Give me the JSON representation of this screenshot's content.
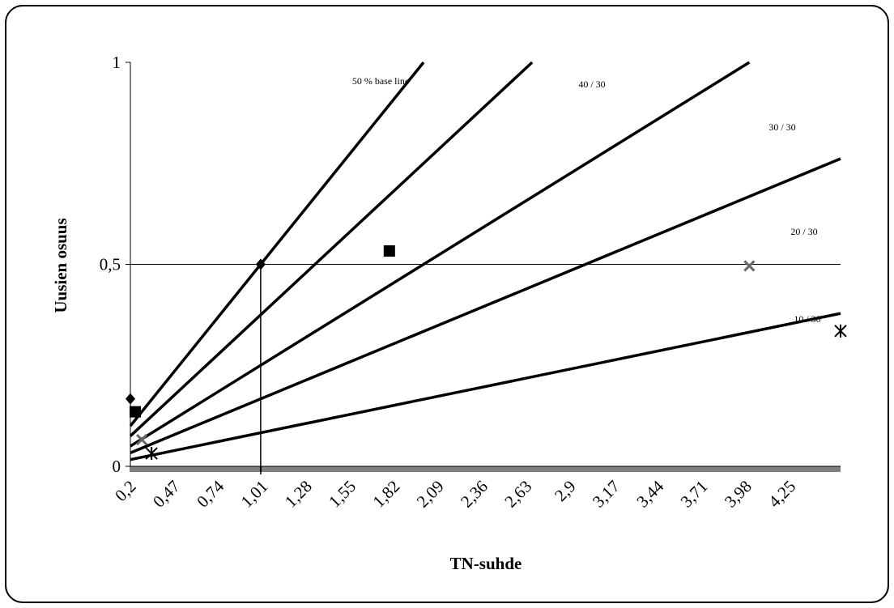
{
  "chart_data": {
    "type": "line",
    "xlabel": "TN-suhde",
    "ylabel": "Uusien osuus",
    "xlim": [
      0.2,
      4.56
    ],
    "ylim": [
      0,
      1
    ],
    "x_tick_labels": [
      "0,2",
      "0,47",
      "0,74",
      "1,01",
      "1,28",
      "1,55",
      "1,82",
      "2,09",
      "2,36",
      "2,63",
      "2,9",
      "3,17",
      "3,44",
      "3,71",
      "3,98",
      "4,25"
    ],
    "x_tick_values": [
      0.2,
      0.47,
      0.74,
      1.01,
      1.28,
      1.55,
      1.82,
      2.09,
      2.36,
      2.63,
      2.9,
      3.17,
      3.44,
      3.71,
      3.98,
      4.25
    ],
    "y_tick_labels": [
      "0",
      "0,5",
      "1"
    ],
    "y_tick_values": [
      0,
      0.5,
      1
    ],
    "reference_lines": {
      "horizontal_y": 0.5,
      "vertical_x": 1.0
    },
    "series": [
      {
        "name": "50 % base line",
        "slope": 0.5,
        "x_end": 2.0,
        "marker": "diamond",
        "marker_points": [
          [
            0.2,
            0.167
          ],
          [
            1.0,
            0.5
          ]
        ]
      },
      {
        "name": "40 / 30",
        "slope": 0.375,
        "x_end": 2.67,
        "marker": "square",
        "marker_points": [
          [
            0.23,
            0.135
          ],
          [
            1.79,
            0.533
          ]
        ]
      },
      {
        "name": "30 / 30",
        "slope": 0.25,
        "x_end": 4.56,
        "marker": "none",
        "marker_points": []
      },
      {
        "name": "20 / 30",
        "slope": 0.167,
        "x_end": 4.56,
        "marker": "x",
        "marker_points": [
          [
            0.27,
            0.066
          ],
          [
            4.0,
            0.496
          ]
        ]
      },
      {
        "name": "10 / 30",
        "slope": 0.083,
        "x_end": 4.56,
        "marker": "asterisk",
        "marker_points": [
          [
            0.33,
            0.032
          ],
          [
            4.56,
            0.335
          ]
        ]
      }
    ]
  }
}
